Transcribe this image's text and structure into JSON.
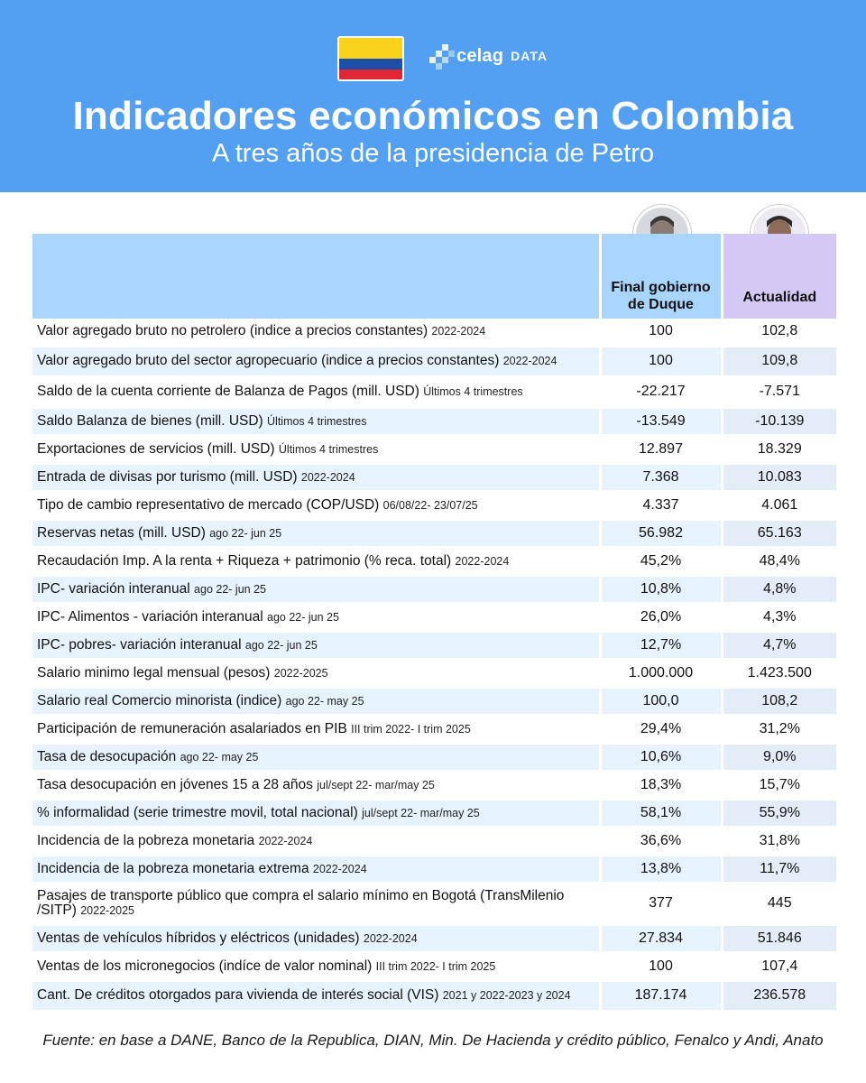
{
  "header": {
    "logo_word": "celag",
    "logo_suffix": "DATA",
    "title": "Indicadores económicos en Colombia",
    "subtitle": "A tres años de la presidencia de Petro",
    "colors": {
      "banner": "#53a0f2",
      "flag_yellow": "#f9d21b",
      "flag_blue": "#1e4fa8",
      "flag_red": "#df2735"
    }
  },
  "table": {
    "col_duque": "Final gobierno de Duque",
    "col_actual": "Actualidad",
    "rows": [
      {
        "label": "Valor agregado bruto no petrolero (indice a precios constantes)",
        "period": "2022-2024",
        "duque": "100",
        "actual": "102,8"
      },
      {
        "label": "Valor agregado bruto del sector agropecuario (indice a precios constantes)",
        "period": "2022-2024",
        "duque": "100",
        "actual": "109,8"
      },
      {
        "label": "Saldo de la cuenta corriente de Balanza de Pagos (mill. USD)",
        "period": "Últimos 4 trimestres",
        "duque": "-22.217",
        "actual": "-7.571"
      },
      {
        "label": "Saldo Balanza de bienes (mill. USD)",
        "period": "Últimos 4 trimestres",
        "duque": "-13.549",
        "actual": "-10.139"
      },
      {
        "label": "Exportaciones de servicios (mill. USD)",
        "period": "Últimos 4 trimestres",
        "duque": "12.897",
        "actual": "18.329"
      },
      {
        "label": "Entrada de divisas por turismo (mill. USD)",
        "period": "2022-2024",
        "duque": "7.368",
        "actual": "10.083"
      },
      {
        "label": "Tipo de cambio representativo de mercado (COP/USD)",
        "period": "06/08/22- 23/07/25",
        "duque": "4.337",
        "actual": "4.061"
      },
      {
        "label": "Reservas netas (mill. USD)",
        "period": "ago 22- jun 25",
        "duque": "56.982",
        "actual": "65.163"
      },
      {
        "label": "Recaudación Imp. A la renta + Riqueza + patrimonio (% reca. total)",
        "period": "2022-2024",
        "duque": "45,2%",
        "actual": "48,4%"
      },
      {
        "label": "IPC- variación interanual",
        "period": "ago 22- jun 25",
        "duque": "10,8%",
        "actual": "4,8%"
      },
      {
        "label": "IPC- Alimentos - variación interanual",
        "period": "ago 22- jun 25",
        "duque": "26,0%",
        "actual": "4,3%"
      },
      {
        "label": "IPC- pobres- variación interanual",
        "period": "ago 22- jun 25",
        "duque": "12,7%",
        "actual": "4,7%"
      },
      {
        "label": "Salario minimo legal mensual (pesos)",
        "period": "2022-2025",
        "duque": "1.000.000",
        "actual": "1.423.500"
      },
      {
        "label": "Salario real Comercio minorista (indice)",
        "period": "ago 22- may 25",
        "duque": "100,0",
        "actual": "108,2"
      },
      {
        "label": "Participación de remuneración asalariados en PIB",
        "period": "III trim 2022- I trim 2025",
        "duque": "29,4%",
        "actual": "31,2%"
      },
      {
        "label": "Tasa de desocupación",
        "period": "ago 22- may 25",
        "duque": "10,6%",
        "actual": "9,0%"
      },
      {
        "label": "Tasa desocupación en jóvenes 15 a 28 años",
        "period": "jul/sept 22- mar/may 25",
        "duque": "18,3%",
        "actual": "15,7%"
      },
      {
        "label": "% informalidad (serie trimestre movil, total nacional)",
        "period": "jul/sept 22- mar/may 25",
        "duque": "58,1%",
        "actual": "55,9%"
      },
      {
        "label": "Incidencia de la pobreza monetaria",
        "period": "2022-2024",
        "duque": "36,6%",
        "actual": "31,8%"
      },
      {
        "label": "Incidencia de la pobreza monetaria extrema",
        "period": "2022-2024",
        "duque": "13,8%",
        "actual": "11,7%"
      },
      {
        "label": "Pasajes de transporte público que compra el salario mínimo en Bogotá (TransMilenio /SITP)",
        "period": "2022-2025",
        "duque": "377",
        "actual": "445"
      },
      {
        "label": "Ventas de vehículos híbridos y eléctricos (unidades)",
        "period": "2022-2024",
        "duque": "27.834",
        "actual": "51.846"
      },
      {
        "label": "Ventas de los micronegocios (indíce de valor nominal)",
        "period": "III trim 2022- I trim 2025",
        "duque": "100",
        "actual": "107,4"
      },
      {
        "label": "Cant. De créditos otorgados para vivienda de interés social (VIS)",
        "period": "2021 y 2022-2023 y 2024",
        "duque": "187.174",
        "actual": "236.578"
      }
    ]
  },
  "footer": {
    "source": "Fuente: en base a DANE, Banco de la Republica, DIAN, Min. De Hacienda y crédito público, Fenalco y Andi, Anato"
  }
}
